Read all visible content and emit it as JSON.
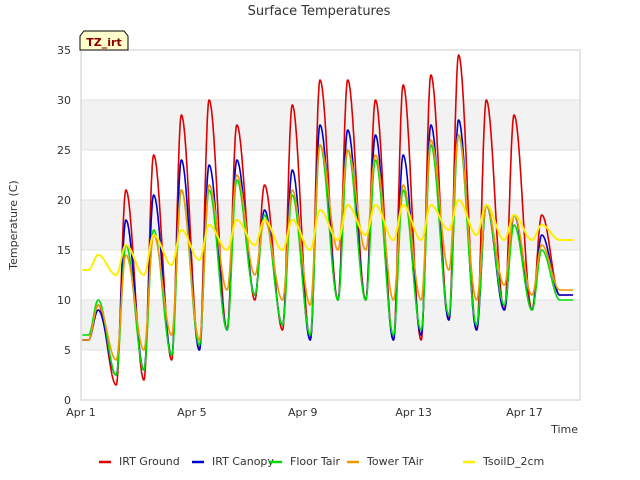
{
  "chart_data": {
    "type": "line",
    "title": "Surface Temperatures",
    "badge": "TZ_irt",
    "xlabel": "Time",
    "ylabel": "Temperature (C)",
    "xlim_days": [
      0,
      18
    ],
    "ylim": [
      0,
      35
    ],
    "yticks": [
      0,
      5,
      10,
      15,
      20,
      25,
      30,
      35
    ],
    "xticks": [
      {
        "day": 0,
        "label": "Apr 1"
      },
      {
        "day": 4,
        "label": "Apr 5"
      },
      {
        "day": 8,
        "label": "Apr 9"
      },
      {
        "day": 12,
        "label": "Apr 13"
      },
      {
        "day": 16,
        "label": "Apr 17"
      }
    ],
    "grid": "horizontal bands",
    "legend_position": "bottom",
    "series": [
      {
        "name": "IRT Ground",
        "color": "#dd0000",
        "daily_min": [
          6.0,
          1.5,
          2.0,
          4.0,
          5.0,
          7.0,
          10.0,
          7.0,
          6.0,
          10.0,
          10.0,
          6.0,
          6.0,
          8.0,
          7.0,
          9.0,
          9.0,
          10.5
        ],
        "daily_max": [
          9.5,
          21.0,
          24.5,
          28.5,
          30.0,
          27.5,
          21.5,
          29.5,
          32.0,
          32.0,
          30.0,
          31.5,
          32.5,
          34.5,
          30.0,
          28.5,
          18.5
        ]
      },
      {
        "name": "IRT Canopy",
        "color": "#0000cc",
        "daily_min": [
          6.0,
          2.5,
          3.0,
          4.5,
          5.0,
          7.0,
          10.5,
          7.5,
          6.0,
          10.0,
          10.0,
          6.0,
          6.5,
          8.0,
          7.0,
          9.0,
          9.0,
          10.5
        ],
        "daily_max": [
          9.0,
          18.0,
          20.5,
          24.0,
          23.5,
          24.0,
          19.0,
          23.0,
          27.5,
          27.0,
          26.5,
          24.5,
          27.5,
          28.0,
          19.5,
          18.5,
          16.5
        ]
      },
      {
        "name": "Floor Tair",
        "color": "#00dd00",
        "daily_min": [
          6.5,
          2.5,
          3.0,
          4.5,
          5.5,
          7.0,
          10.5,
          7.5,
          6.5,
          10.0,
          10.0,
          6.5,
          7.0,
          8.5,
          7.5,
          9.5,
          9.0,
          10.0
        ],
        "daily_max": [
          10.0,
          15.5,
          17.0,
          21.0,
          21.0,
          22.0,
          18.5,
          20.5,
          25.5,
          25.0,
          24.0,
          21.0,
          25.5,
          26.5,
          19.5,
          17.5,
          15.0
        ]
      },
      {
        "name": "Tower TAir",
        "color": "#ee9900",
        "daily_min": [
          6.0,
          4.0,
          5.0,
          6.5,
          6.0,
          11.0,
          12.5,
          10.0,
          9.5,
          15.0,
          15.0,
          10.0,
          10.0,
          13.0,
          10.0,
          11.5,
          10.5,
          11.0
        ],
        "daily_max": [
          9.5,
          14.5,
          16.5,
          21.0,
          21.5,
          22.5,
          18.0,
          21.0,
          25.5,
          25.0,
          24.5,
          21.5,
          26.0,
          26.5,
          19.5,
          18.5,
          15.5
        ]
      },
      {
        "name": "TsoilD_2cm",
        "color": "#ffee00",
        "daily_min": [
          13.0,
          12.5,
          12.5,
          13.5,
          14.0,
          15.0,
          15.5,
          15.0,
          15.0,
          16.0,
          16.5,
          16.0,
          16.0,
          17.0,
          16.5,
          16.0,
          16.0,
          16.0
        ],
        "daily_max": [
          14.5,
          15.5,
          16.5,
          17.0,
          17.5,
          18.0,
          18.0,
          18.0,
          19.0,
          19.5,
          19.5,
          19.5,
          19.5,
          20.0,
          19.5,
          18.5,
          17.5
        ]
      }
    ]
  }
}
